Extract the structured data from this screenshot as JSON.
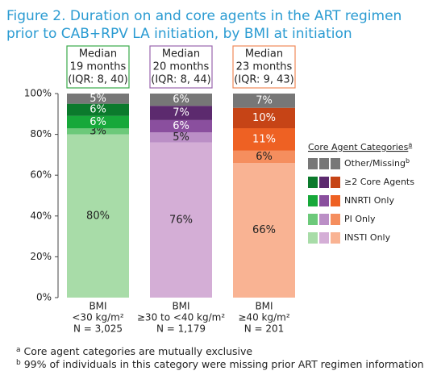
{
  "chart_data": {
    "type": "stacked_bar",
    "title": [
      "Figure 2. Duration on and core agents in the ART regimen",
      "prior to CAB+RPV LA initiation, by BMI at initiation"
    ],
    "categories": [
      [
        "BMI",
        "<30 kg/m²",
        "N = 3,025"
      ],
      [
        "BMI",
        "≥30 to <40 kg/m²",
        "N = 1,179"
      ],
      [
        "BMI",
        "≥40 kg/m²",
        "N = 201"
      ]
    ],
    "annotations": [
      {
        "lines": [
          "Median",
          "19 months",
          "(IQR: 8, 40)"
        ],
        "color": "#3aaa4a"
      },
      {
        "lines": [
          "Median",
          "20 months",
          "(IQR: 8, 44)"
        ],
        "color": "#9a66ae"
      },
      {
        "lines": [
          "Median",
          "23 months",
          "(IQR: 9, 43)"
        ],
        "color": "#f08a5a"
      }
    ],
    "series": [
      {
        "name": "INSTI Only",
        "colors": [
          "#a8dca8",
          "#d4aed6",
          "#f9b393"
        ],
        "values": [
          80,
          76,
          66
        ],
        "value_labels": [
          "80%",
          "76%",
          "66%"
        ]
      },
      {
        "name": "PI Only",
        "colors": [
          "#6cc97a",
          "#bb8fc6",
          "#f58e5e"
        ],
        "values": [
          3,
          5,
          6
        ],
        "value_labels": [
          "3%",
          "5%",
          "6%"
        ]
      },
      {
        "name": "NNRTI Only",
        "colors": [
          "#17a83a",
          "#8a4f9e",
          "#ee6123"
        ],
        "values": [
          6,
          6,
          11
        ],
        "value_labels": [
          "6%",
          "6%",
          "11%"
        ]
      },
      {
        "name": "≥2 Core Agents",
        "colors": [
          "#0b7a2c",
          "#5c2a6e",
          "#c64416"
        ],
        "values": [
          6,
          7,
          10
        ],
        "value_labels": [
          "6%",
          "7%",
          "10%"
        ]
      },
      {
        "name": "Other/Missing",
        "note": "b",
        "colors": [
          "#777777",
          "#777777",
          "#777777"
        ],
        "values": [
          5,
          6,
          7
        ],
        "value_labels": [
          "5%",
          "6%",
          "7%"
        ]
      }
    ],
    "legend_title": "Core Agent Categories",
    "legend_title_note": "a",
    "ylim": [
      0,
      100
    ],
    "yticks": [
      {
        "value": 0,
        "label": "0%"
      },
      {
        "value": 20,
        "label": "20%"
      },
      {
        "value": 40,
        "label": "40%"
      },
      {
        "value": 60,
        "label": "60%"
      },
      {
        "value": 80,
        "label": "80%"
      },
      {
        "value": 100,
        "label": "100%"
      }
    ],
    "grid": false,
    "footnotes": [
      {
        "mark": "a",
        "text": "Core agent categories are mutually exclusive"
      },
      {
        "mark": "b",
        "text": "99% of individuals in this category were missing prior ART regimen information"
      }
    ]
  }
}
